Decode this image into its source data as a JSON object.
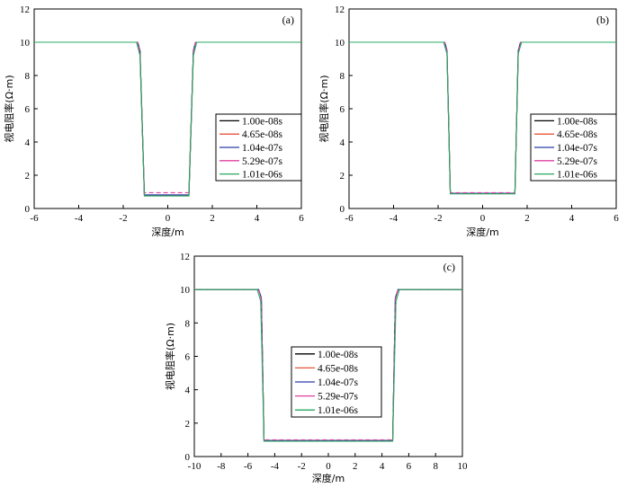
{
  "chart_data": [
    {
      "type": "line",
      "panel_label": "(a)",
      "xlabel": "深度/m",
      "ylabel": "视电阻率(Ω·m)",
      "xlim": [
        -6,
        6
      ],
      "ylim": [
        0,
        12
      ],
      "xticks": [
        -6,
        -4,
        -2,
        0,
        2,
        4,
        6
      ],
      "yticks": [
        0,
        2,
        4,
        6,
        8,
        10,
        12
      ],
      "legend_position": "right-center",
      "grid": false,
      "series": [
        {
          "name": "1.00e-08s",
          "color": "#000000",
          "x": [
            -6,
            -1.35,
            -1.25,
            -1.05,
            0.95,
            1.15,
            1.25,
            6
          ],
          "y": [
            10,
            10,
            9.5,
            0.8,
            0.8,
            9.5,
            10,
            10
          ]
        },
        {
          "name": "4.65e-08s",
          "color": "#e8543a",
          "x": [
            -6,
            -1.35,
            -1.25,
            -1.05,
            0.95,
            1.15,
            1.25,
            6
          ],
          "y": [
            10,
            10,
            9.5,
            0.8,
            0.8,
            9.5,
            10,
            10
          ]
        },
        {
          "name": "1.04e-07s",
          "color": "#2b3fa8",
          "x": [
            -6,
            -1.35,
            -1.25,
            -1.05,
            0.95,
            1.15,
            1.25,
            6
          ],
          "y": [
            10,
            10,
            9.5,
            0.82,
            0.82,
            9.5,
            10,
            10
          ]
        },
        {
          "name": "5.29e-07s",
          "color": "#e040a0",
          "x": [
            -6,
            -1.35,
            -1.25,
            -1.05,
            0.95,
            1.15,
            1.25,
            6
          ],
          "y": [
            10,
            10,
            9.4,
            0.95,
            0.95,
            9.4,
            10,
            10
          ]
        },
        {
          "name": "1.01e-06s",
          "color": "#2aa860",
          "x": [
            -6,
            -1.4,
            -1.25,
            -1.05,
            0.95,
            1.15,
            1.3,
            6
          ],
          "y": [
            10,
            10,
            9.2,
            0.75,
            0.75,
            9.2,
            10,
            10
          ]
        }
      ]
    },
    {
      "type": "line",
      "panel_label": "(b)",
      "xlabel": "深度/m",
      "ylabel": "视电阻率(Ω·m)",
      "xlim": [
        -6,
        6
      ],
      "ylim": [
        0,
        12
      ],
      "xticks": [
        -6,
        -4,
        -2,
        0,
        2,
        4,
        6
      ],
      "yticks": [
        0,
        2,
        4,
        6,
        8,
        10,
        12
      ],
      "legend_position": "right-center",
      "grid": false,
      "series": [
        {
          "name": "1.00e-08s",
          "color": "#000000",
          "x": [
            -6,
            -1.7,
            -1.6,
            -1.45,
            1.45,
            1.6,
            1.7,
            6
          ],
          "y": [
            10,
            10,
            9.5,
            0.9,
            0.9,
            9.5,
            10,
            10
          ]
        },
        {
          "name": "4.65e-08s",
          "color": "#e8543a",
          "x": [
            -6,
            -1.7,
            -1.6,
            -1.45,
            1.45,
            1.6,
            1.7,
            6
          ],
          "y": [
            10,
            10,
            9.5,
            0.9,
            0.9,
            9.5,
            10,
            10
          ]
        },
        {
          "name": "1.04e-07s",
          "color": "#2b3fa8",
          "x": [
            -6,
            -1.7,
            -1.6,
            -1.45,
            1.45,
            1.6,
            1.7,
            6
          ],
          "y": [
            10,
            10,
            9.5,
            0.92,
            0.92,
            9.5,
            10,
            10
          ]
        },
        {
          "name": "5.29e-07s",
          "color": "#e040a0",
          "x": [
            -6,
            -1.7,
            -1.6,
            -1.45,
            1.45,
            1.6,
            1.7,
            6
          ],
          "y": [
            10,
            10,
            9.4,
            0.95,
            0.95,
            9.4,
            10,
            10
          ]
        },
        {
          "name": "1.01e-06s",
          "color": "#2aa860",
          "x": [
            -6,
            -1.75,
            -1.6,
            -1.45,
            1.45,
            1.6,
            1.75,
            6
          ],
          "y": [
            10,
            10,
            9.3,
            0.88,
            0.88,
            9.3,
            10,
            10
          ]
        }
      ]
    },
    {
      "type": "line",
      "panel_label": "(c)",
      "xlabel": "深度/m",
      "ylabel": "视电阻率(Ω·m)",
      "xlim": [
        -10,
        10
      ],
      "ylim": [
        0,
        12
      ],
      "xticks": [
        -10,
        -8,
        -6,
        -4,
        -2,
        0,
        2,
        4,
        6,
        8,
        10
      ],
      "yticks": [
        0,
        2,
        4,
        6,
        8,
        10,
        12
      ],
      "legend_position": "center",
      "grid": false,
      "series": [
        {
          "name": "1.00e-08s",
          "color": "#000000",
          "x": [
            -10,
            -5.2,
            -5.0,
            -4.8,
            4.8,
            5.0,
            5.2,
            10
          ],
          "y": [
            10,
            10,
            9.5,
            0.95,
            0.95,
            9.5,
            10,
            10
          ]
        },
        {
          "name": "4.65e-08s",
          "color": "#e8543a",
          "x": [
            -10,
            -5.2,
            -5.0,
            -4.8,
            4.8,
            5.0,
            5.2,
            10
          ],
          "y": [
            10,
            10,
            9.5,
            0.95,
            0.95,
            9.5,
            10,
            10
          ]
        },
        {
          "name": "1.04e-07s",
          "color": "#2b3fa8",
          "x": [
            -10,
            -5.2,
            -5.0,
            -4.8,
            4.8,
            5.0,
            5.2,
            10
          ],
          "y": [
            10,
            10,
            9.5,
            0.97,
            0.97,
            9.5,
            10,
            10
          ]
        },
        {
          "name": "5.29e-07s",
          "color": "#e040a0",
          "x": [
            -10,
            -5.2,
            -5.0,
            -4.8,
            4.8,
            5.0,
            5.2,
            10
          ],
          "y": [
            10,
            10,
            9.4,
            1.0,
            1.0,
            9.4,
            10,
            10
          ]
        },
        {
          "name": "1.01e-06s",
          "color": "#2aa860",
          "x": [
            -10,
            -5.3,
            -5.05,
            -4.8,
            4.8,
            5.05,
            5.3,
            10
          ],
          "y": [
            10,
            10,
            9.3,
            0.92,
            0.92,
            9.3,
            10,
            10
          ]
        }
      ]
    }
  ]
}
